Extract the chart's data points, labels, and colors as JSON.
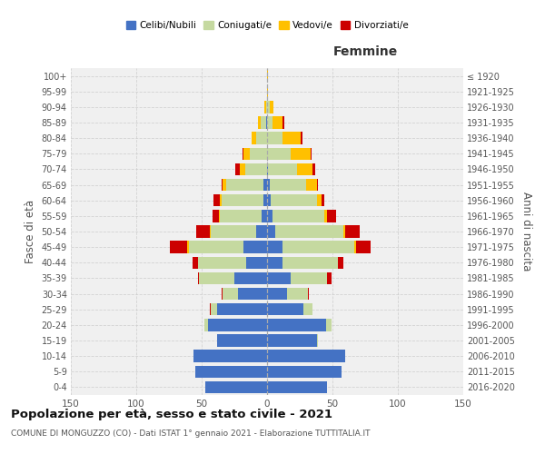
{
  "age_groups": [
    "0-4",
    "5-9",
    "10-14",
    "15-19",
    "20-24",
    "25-29",
    "30-34",
    "35-39",
    "40-44",
    "45-49",
    "50-54",
    "55-59",
    "60-64",
    "65-69",
    "70-74",
    "75-79",
    "80-84",
    "85-89",
    "90-94",
    "95-99",
    "100+"
  ],
  "birth_years": [
    "2016-2020",
    "2011-2015",
    "2006-2010",
    "2001-2005",
    "1996-2000",
    "1991-1995",
    "1986-1990",
    "1981-1985",
    "1976-1980",
    "1971-1975",
    "1966-1970",
    "1961-1965",
    "1956-1960",
    "1951-1955",
    "1946-1950",
    "1941-1945",
    "1936-1940",
    "1931-1935",
    "1926-1930",
    "1921-1925",
    "≤ 1920"
  ],
  "males_celibi": [
    47,
    55,
    56,
    38,
    45,
    38,
    22,
    25,
    16,
    18,
    8,
    4,
    3,
    3,
    0,
    0,
    0,
    1,
    0,
    0,
    0
  ],
  "males_coniugati": [
    0,
    0,
    0,
    0,
    3,
    5,
    12,
    27,
    37,
    42,
    35,
    32,
    32,
    28,
    17,
    13,
    8,
    4,
    1,
    0,
    0
  ],
  "males_vedovi": [
    0,
    0,
    0,
    0,
    0,
    0,
    0,
    0,
    0,
    1,
    1,
    1,
    1,
    3,
    4,
    5,
    4,
    2,
    1,
    0,
    0
  ],
  "males_divorziati": [
    0,
    0,
    0,
    0,
    0,
    1,
    1,
    1,
    4,
    13,
    10,
    5,
    5,
    1,
    3,
    1,
    0,
    0,
    0,
    0,
    0
  ],
  "females_celibi": [
    46,
    57,
    60,
    38,
    45,
    28,
    15,
    18,
    12,
    12,
    6,
    4,
    3,
    2,
    1,
    0,
    0,
    0,
    0,
    0,
    0
  ],
  "females_coniugati": [
    0,
    0,
    0,
    1,
    4,
    7,
    16,
    28,
    42,
    55,
    52,
    40,
    35,
    28,
    22,
    18,
    12,
    4,
    2,
    0,
    0
  ],
  "females_vedovi": [
    0,
    0,
    0,
    0,
    0,
    0,
    0,
    0,
    0,
    1,
    2,
    2,
    4,
    8,
    12,
    15,
    14,
    8,
    3,
    1,
    1
  ],
  "females_divorziati": [
    0,
    0,
    0,
    0,
    0,
    0,
    1,
    3,
    4,
    11,
    11,
    7,
    2,
    1,
    2,
    1,
    1,
    1,
    0,
    0,
    0
  ],
  "color_celibi": "#4472c4",
  "color_coniugati": "#c5d9a0",
  "color_vedovi": "#ffc000",
  "color_divorziati": "#cc0000",
  "title": "Popolazione per età, sesso e stato civile - 2021",
  "subtitle": "COMUNE DI MONGUZZO (CO) - Dati ISTAT 1° gennaio 2021 - Elaborazione TUTTITALIA.IT",
  "xlabel_right": "Femmine",
  "ylabel_left": "Fasce di età",
  "ylabel_right": "Anni di nascita",
  "xlim": 150,
  "bg_color": "#f0f0f0",
  "grid_color": "#cccccc"
}
